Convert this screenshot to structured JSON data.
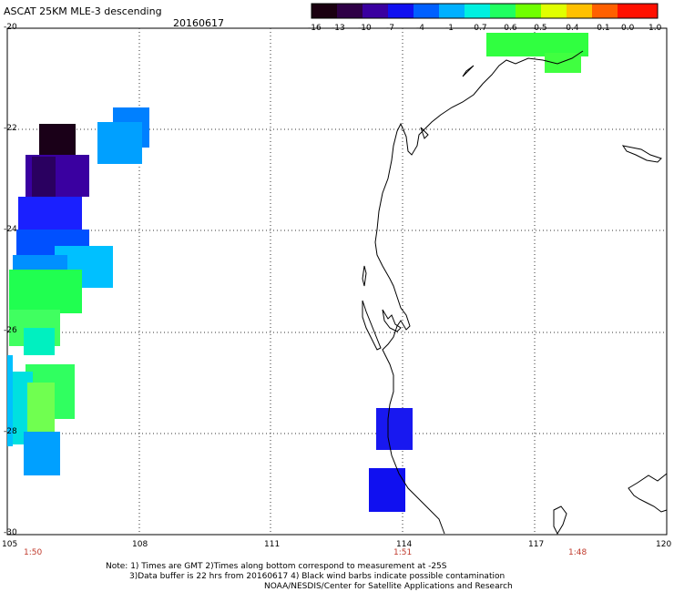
{
  "header": {
    "title": "ASCAT 25KM MLE-3 descending",
    "date": "20160617"
  },
  "colorbar": {
    "labels": [
      "-16",
      "-13",
      "-10",
      "-7",
      "-4",
      "-1",
      "-0.7",
      "-0.6",
      "-0.5",
      "-0.4",
      "-0.1",
      "0.0",
      "1.0"
    ],
    "colors": [
      "#1a0010",
      "#2e0046",
      "#3a00a0",
      "#1010f0",
      "#0060ff",
      "#00b0ff",
      "#00f0e0",
      "#20ff60",
      "#70ff00",
      "#e0ff00",
      "#ffc000",
      "#ff6000",
      "#ff1000"
    ]
  },
  "axes": {
    "lat_labels": [
      "-20",
      "-22",
      "-24",
      "-26",
      "-28",
      "-30"
    ],
    "lon_labels": [
      "105",
      "108",
      "111",
      "114",
      "117",
      "120"
    ],
    "time_labels": [
      "1:50",
      "1:51",
      "1:48"
    ]
  },
  "notes": {
    "line1": "Note: 1) Times are GMT 2)Times along bottom correspond to measurement at -25S",
    "line2": "3)Data buffer is 22 hrs from 20160617 4) Black wind barbs indicate possible contamination",
    "line3": "NOAA/NESDIS/Center for Satellite Applications and Research"
  }
}
